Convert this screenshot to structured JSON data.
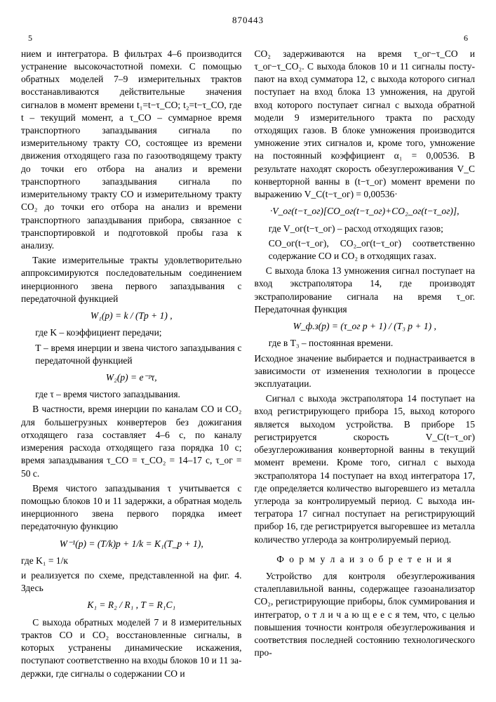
{
  "patent_number": "870443",
  "col_left_num": "5",
  "col_right_num": "6",
  "left": {
    "p1": "нием и интегратора. В фильтрах 4–6 про­изводится устранение высокочастотной по­мехи. С помощью обратных моделей 7–9 измерительных трактов восстанавливаются действительные значения сигналов в мо­мент времени t₁=t−τ_CO; t₂=t−τ_CO, где t – текущий момент, а τ_CO – суммарное вре­мя транспортного запаздывания сигнала по измерительному тракту CO, состоящее из времени движения отходящего газа по газоотводящему тракту до точки его отбора на анализ и времени транспортного за­паздывания сигнала по измерительному тракту CO и измерительному тракту CO₂ до точки его отбора на анализ и вре­мени транспортного запаздывания при­бора, связанное с транспортировкой и под­готовкой пробы газа к анализу.",
    "p2": "Такие измерительные тракты удовлет­ворительно аппроксимируются последова­тельным соединением инерционного звена первого запаздывания с передаточной функцией",
    "f1": "W₁(p) = k / (Tp + 1) ,",
    "d1": "где  K – коэффициент передачи;",
    "d2": "T – время инерции и звена чисто­го запаздывания с передаточной функцией",
    "f2": "W₂(p) = e⁻ᵖτ,",
    "d3": "где  τ – время чистого запаздывания.",
    "p3": "В частности, время инерции по ка­налам CO и CO₂ для большегрузных кон­вертеров без дожигания отходящего газа составляет 4–6 с, по каналу измерения расхода отходящего газа порядка 10 с; время запаздывания τ_CO = τ_CO₂ = 14–17 с, τ_ог = 50 с.",
    "p4": "Время чистого запаздывания τ учи­тывается с помощью блоков 10 и 11 за­держки, а обратная модель инерционного звена первого порядка имеет передаточ­ную функцию",
    "f3": "W⁻¹(p) = (T/k)p + 1/k = K₁(T_p + 1),",
    "d4": "где K₁ = 1/к",
    "p5": "и реализуется по схеме, представленной на фиг. 4. Здесь",
    "f4": "K₁ = R₂ / R₁ ,        T = R₁C₁",
    "p6": "С выхода обратных моделей 7 и 8 из­мерительных трактов CO и CO₂ восста­новленные сигналы, в которых устранены динамические искажения, поступают соот­ветственно на входы блоков 10 и 11 за­держки, где сигналы о содержании CO и"
  },
  "right": {
    "p1": "CO₂ задерживаются на время τ_ог−τ_CO и τ_ог−τ_CO₂. С выхода блоков 10 и 11 сигналы посту­пают на вход сумматора 12, с выхода ко­торого сигнал поступает на вход блока 13 умножения, на другой вход которого поступает сигнал с выхода обратной мо­дели 9 измерительного тракта по расходу отходящих газов. В блоке умножения про­изводится умножение этих сигналов и, кро­ме того, умножение на постоянный коэф­фициент α₁ = 0,00536. В результате на­ходят скорость обезуглероживания V_C кон­верторной ванны в (t−τ_ог) момент вре­мени по выражению V_C(t−τ_ог) = 0,00536·",
    "f1": "·V_ог(t−τ_ог)[CO_ог(t−τ_ог)+CO₂_ог(t−τ_ог)],",
    "d1": "где V_ог(t−τ_ог) – расход отходящих газов;",
    "d2": "CO_ог(t−τ_ог), CO₂_ог(t−τ_ог)  соответственно содержание CO и CO₂ в отходящих газах.",
    "p2": "С выхода блока 13 умножения сигнал поступает на вход экстраполятора 14, где производят экстраполирование сигна­ла на время τ_ог. Передаточная функция",
    "f2": "W_ф.з(p) = (τ_ог p + 1) / (T₃ p + 1) ,",
    "d3": "где в  T₃ – постоянная времени.",
    "p3": "Исходное значение выбирается и подна­страивается в зависимости от изменения технологии в процессе эксплуатации.",
    "p4": "Сигнал с выхода экстраполятора 14 поступает на вход регистрирующего при­бора 15, выход которого является выходом устройства. В приборе 15 регистрирует­ся скорость V_C(t−τ_ог) обезуглероживания конверторной ванны в текущий момент времени. Кроме того, сигнал с выхода экстраполятора 14 поступает на вход ин­тегратора 17, где определяется коли­чество выгоревшего из металла углерода за контролируемый период. С выхода ин­тегратора 17 сигнал поступает на реги­стрирующий прибор 16, где регистрируется выгоревшее из металла количество угле­рода за контролируемый период.",
    "claims_title": "Ф о р м у л а   и з о б р е т е н и я",
    "p5": "Устройство для контроля обезуглеро­живания сталеплавильной ванны, содержа­щее газоанализатор CO₂, регистрирующие приборы, блок суммирования и интегра­тор, о т л и ч а ю щ е е с я  тем, что, с целью повышения точности контроля обезуглероживания и соответствия по­следней состоянию технологического про-"
  },
  "linemarks_left": [
    "5",
    "10",
    "15",
    "20",
    "25",
    "30",
    "35",
    "40",
    "45",
    "50",
    "55"
  ]
}
